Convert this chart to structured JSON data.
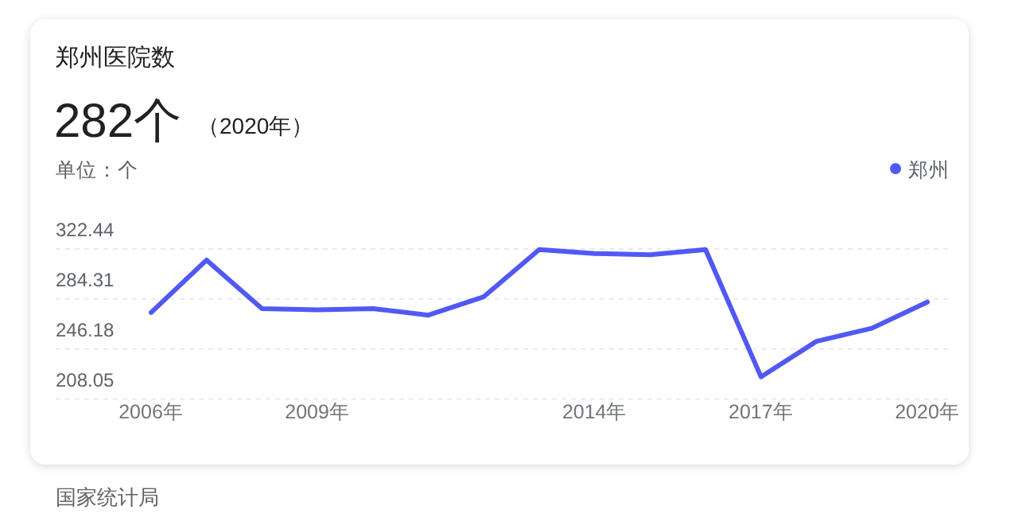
{
  "chart_data": {
    "type": "line",
    "title": "郑州医院数",
    "ylabel": "单位：个",
    "annotations": [
      "282个",
      "（2020年）",
      "国家统计局"
    ],
    "categories": [
      "2006年",
      null,
      null,
      "2009年",
      null,
      null,
      null,
      null,
      "2014年",
      null,
      null,
      "2017年",
      null,
      null,
      "2020年"
    ],
    "series": [
      {
        "name": "郑州",
        "color": "#5159f4",
        "values": [
          274,
          314,
          277,
          276,
          277,
          272,
          286,
          322,
          319,
          318,
          322,
          225,
          252,
          262,
          282
        ]
      }
    ],
    "ylim": [
      208.05,
      322.44
    ],
    "yticks": [
      208.05,
      246.18,
      284.31,
      322.44
    ],
    "grid": "y",
    "legend": "top right",
    "marker": "none",
    "line_style": "solid"
  }
}
